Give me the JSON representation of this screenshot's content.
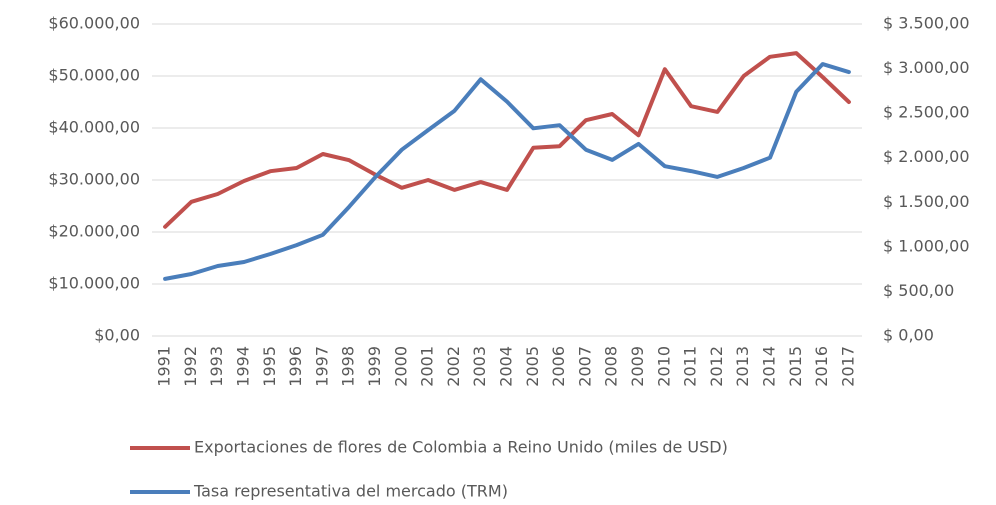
{
  "chart_data": {
    "type": "line",
    "categories": [
      "1991",
      "1992",
      "1993",
      "1994",
      "1995",
      "1996",
      "1997",
      "1998",
      "1999",
      "2000",
      "2001",
      "2002",
      "2003",
      "2004",
      "2005",
      "2006",
      "2007",
      "2008",
      "2009",
      "2010",
      "2011",
      "2012",
      "2013",
      "2014",
      "2015",
      "2016",
      "2017"
    ],
    "series": [
      {
        "name": "Exportaciones de flores de Colombia a Reino Unido (miles de USD)",
        "color": "#c0504d",
        "values": [
          21000,
          25800,
          27300,
          29800,
          31700,
          32300,
          35000,
          33800,
          31000,
          28500,
          30000,
          28100,
          29600,
          28100,
          36200,
          36500,
          41500,
          42700,
          38600,
          51300,
          44200,
          43100,
          50000,
          53700,
          54400,
          49800,
          45000
        ]
      },
      {
        "name": "Tasa representativa del mercado (TRM)",
        "color": "#4a7ebb",
        "axis": "y2",
        "values": [
          640,
          695,
          785,
          830,
          920,
          1020,
          1135,
          1450,
          1785,
          2090,
          2310,
          2525,
          2880,
          2630,
          2330,
          2365,
          2090,
          1975,
          2155,
          1905,
          1850,
          1785,
          1885,
          2000,
          2740,
          3050,
          2960
        ]
      }
    ],
    "ylim": [
      0,
      60000
    ],
    "yticks": [
      {
        "value": 0,
        "label": "$0,00"
      },
      {
        "value": 10000,
        "label": "$10.000,00"
      },
      {
        "value": 20000,
        "label": "$20.000,00"
      },
      {
        "value": 30000,
        "label": "$30.000,00"
      },
      {
        "value": 40000,
        "label": "$40.000,00"
      },
      {
        "value": 50000,
        "label": "$50.000,00"
      },
      {
        "value": 60000,
        "label": "$60.000,00"
      }
    ],
    "y2lim": [
      0,
      3500
    ],
    "y2ticks": [
      {
        "value": 0,
        "label": "$ 0,00"
      },
      {
        "value": 500,
        "label": "$ 500,00"
      },
      {
        "value": 1000,
        "label": "$ 1.000,00"
      },
      {
        "value": 1500,
        "label": "$ 1.500,00"
      },
      {
        "value": 2000,
        "label": "$ 2.000,00"
      },
      {
        "value": 2500,
        "label": "$ 2.500,00"
      },
      {
        "value": 3000,
        "label": "$ 3.000,00"
      },
      {
        "value": 3500,
        "label": "$ 3.500,00"
      }
    ],
    "grid": true
  }
}
